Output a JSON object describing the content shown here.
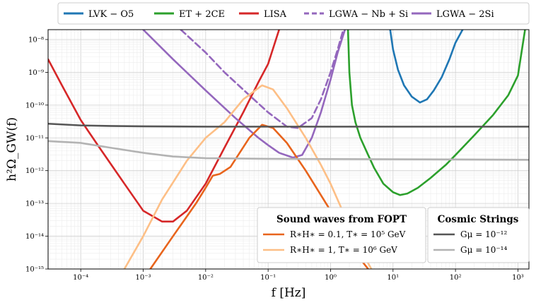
{
  "chart_data": {
    "type": "line",
    "title": "",
    "xlabel": "f [Hz]",
    "ylabel": "h²Ω_GW(f)",
    "xscale": "log",
    "yscale": "log",
    "xlim": [
      3e-05,
      1500
    ],
    "ylim": [
      1e-15,
      2e-08
    ],
    "grid": true,
    "x_ticks": [
      {
        "value": 0.0001,
        "label": "10⁻⁴"
      },
      {
        "value": 0.001,
        "label": "10⁻³"
      },
      {
        "value": 0.01,
        "label": "10⁻²"
      },
      {
        "value": 0.1,
        "label": "10⁻¹"
      },
      {
        "value": 1,
        "label": "10⁰"
      },
      {
        "value": 10,
        "label": "10¹"
      },
      {
        "value": 100,
        "label": "10²"
      },
      {
        "value": 1000,
        "label": "10³"
      }
    ],
    "y_ticks": [
      {
        "value": 1e-15,
        "label": "10⁻¹⁵"
      },
      {
        "value": 1e-14,
        "label": "10⁻¹⁴"
      },
      {
        "value": 1e-13,
        "label": "10⁻¹³"
      },
      {
        "value": 1e-12,
        "label": "10⁻¹²"
      },
      {
        "value": 1e-11,
        "label": "10⁻¹¹"
      },
      {
        "value": 1e-10,
        "label": "10⁻¹⁰"
      },
      {
        "value": 1e-09,
        "label": "10⁻⁹"
      },
      {
        "value": 1e-08,
        "label": "10⁻⁸"
      }
    ],
    "top_legend": [
      {
        "label": "LVK − O5",
        "color": "#1f77b4",
        "dash": "solid"
      },
      {
        "label": "ET + 2CE",
        "color": "#2ca02c",
        "dash": "solid"
      },
      {
        "label": "LISA",
        "color": "#d62728",
        "dash": "solid"
      },
      {
        "label": "LGWA − Nb + Si",
        "color": "#9467bd",
        "dash": "dashed"
      },
      {
        "label": "LGWA − 2Si",
        "color": "#9467bd",
        "dash": "solid"
      }
    ],
    "fopt_legend": {
      "title": "Sound waves from FOPT",
      "entries": [
        {
          "label": "R∗H∗ = 0.1, T∗ = 10⁵ GeV",
          "color": "#e8641c"
        },
        {
          "label": "R∗H∗ = 1, T∗ = 10⁶ GeV",
          "color": "#fdbf86"
        }
      ]
    },
    "strings_legend": {
      "title": "Cosmic Strings",
      "entries": [
        {
          "label": "Gμ = 10⁻¹²",
          "color": "#555555"
        },
        {
          "label": "Gμ = 10⁻¹⁴",
          "color": "#b3b3b3"
        }
      ]
    },
    "series": [
      {
        "name": "LVK − O5",
        "color": "#1f77b4",
        "dash": "solid",
        "x": [
          9,
          10,
          12,
          15,
          20,
          27,
          35,
          45,
          60,
          80,
          100,
          130
        ],
        "y": [
          2e-08,
          5e-09,
          1.2e-09,
          4e-10,
          1.8e-10,
          1.2e-10,
          1.5e-10,
          2.8e-10,
          7e-10,
          2.5e-09,
          8e-09,
          2e-08
        ]
      },
      {
        "name": "ET + 2CE",
        "color": "#2ca02c",
        "dash": "solid",
        "x": [
          1.9,
          2.0,
          2.2,
          2.5,
          3,
          4,
          5,
          7,
          10,
          13,
          17,
          25,
          40,
          70,
          100,
          200,
          400,
          700,
          1000,
          1300
        ],
        "y": [
          2e-08,
          1e-09,
          1e-10,
          3e-11,
          1e-11,
          3e-12,
          1.2e-12,
          4e-13,
          2.2e-13,
          1.8e-13,
          2e-13,
          3e-13,
          6e-13,
          1.5e-12,
          3e-12,
          1.2e-11,
          5e-11,
          2e-10,
          8e-10,
          2e-08
        ]
      },
      {
        "name": "LISA",
        "color": "#d62728",
        "dash": "solid",
        "x": [
          3e-05,
          5e-05,
          0.0001,
          0.0002,
          0.0005,
          0.001,
          0.002,
          0.003,
          0.005,
          0.01,
          0.02,
          0.04,
          0.07,
          0.1,
          0.15
        ],
        "y": [
          2.5e-09,
          4e-10,
          3.5e-11,
          5e-12,
          4e-13,
          6e-14,
          2.8e-14,
          2.8e-14,
          6e-14,
          4e-13,
          5e-12,
          6e-11,
          5e-10,
          1.8e-09,
          2e-08
        ]
      },
      {
        "name": "LGWA − Nb + Si",
        "color": "#9467bd",
        "dash": "dashed",
        "x": [
          0.004,
          0.01,
          0.02,
          0.05,
          0.1,
          0.2,
          0.3,
          0.5,
          0.7,
          1.0,
          1.3,
          1.6
        ],
        "y": [
          2e-08,
          4e-09,
          1e-09,
          2e-10,
          6e-11,
          2.2e-11,
          2e-11,
          4e-11,
          1.5e-10,
          1e-09,
          5e-09,
          2e-08
        ]
      },
      {
        "name": "LGWA − 2Si",
        "color": "#9467bd",
        "dash": "solid",
        "x": [
          0.001,
          0.003,
          0.01,
          0.03,
          0.07,
          0.1,
          0.15,
          0.25,
          0.35,
          0.5,
          0.7,
          1.0,
          1.3,
          1.7
        ],
        "y": [
          2e-08,
          2.5e-09,
          2.8e-10,
          4e-11,
          1e-11,
          6e-12,
          3.5e-12,
          2.5e-12,
          3e-12,
          1e-11,
          6e-11,
          6e-10,
          4e-09,
          2e-08
        ]
      },
      {
        "name": "FOPT R∗H∗=0.1",
        "color": "#e8641c",
        "dash": "solid",
        "x": [
          0.0013,
          0.003,
          0.007,
          0.01,
          0.013,
          0.017,
          0.025,
          0.05,
          0.08,
          0.12,
          0.2,
          0.4,
          1.0,
          2.0,
          3.0,
          4.0
        ],
        "y": [
          1e-15,
          1e-14,
          1e-13,
          3e-13,
          7e-13,
          8e-13,
          1.3e-12,
          1e-11,
          2.5e-11,
          2e-11,
          7e-12,
          1e-12,
          6e-14,
          6e-15,
          2e-15,
          1e-15
        ]
      },
      {
        "name": "FOPT R∗H∗=1",
        "color": "#fdbf86",
        "dash": "solid",
        "x": [
          0.0005,
          0.001,
          0.002,
          0.005,
          0.01,
          0.02,
          0.04,
          0.08,
          0.12,
          0.2,
          0.4,
          0.7,
          1.0,
          2.0,
          3.0,
          4.5
        ],
        "y": [
          1e-15,
          1e-14,
          1.3e-13,
          2e-12,
          1e-11,
          3e-11,
          1.5e-10,
          4e-10,
          3e-10,
          8e-11,
          1e-11,
          1.5e-12,
          4e-13,
          2e-14,
          4e-15,
          1e-15
        ]
      },
      {
        "name": "Gμ = 10⁻¹²",
        "color": "#555555",
        "dash": "solid",
        "x": [
          3e-05,
          0.0001,
          0.0003,
          0.001,
          0.01,
          1,
          100,
          1500
        ],
        "y": [
          2.7e-11,
          2.4e-11,
          2.3e-11,
          2.25e-11,
          2.2e-11,
          2.2e-11,
          2.2e-11,
          2.2e-11
        ]
      },
      {
        "name": "Gμ = 10⁻¹⁴",
        "color": "#b3b3b3",
        "dash": "solid",
        "x": [
          3e-05,
          0.0001,
          0.0003,
          0.001,
          0.003,
          0.01,
          0.1,
          1,
          100,
          1500
        ],
        "y": [
          8e-12,
          7e-12,
          5e-12,
          3.5e-12,
          2.7e-12,
          2.4e-12,
          2.3e-12,
          2.25e-12,
          2.2e-12,
          2.15e-12
        ]
      }
    ]
  }
}
